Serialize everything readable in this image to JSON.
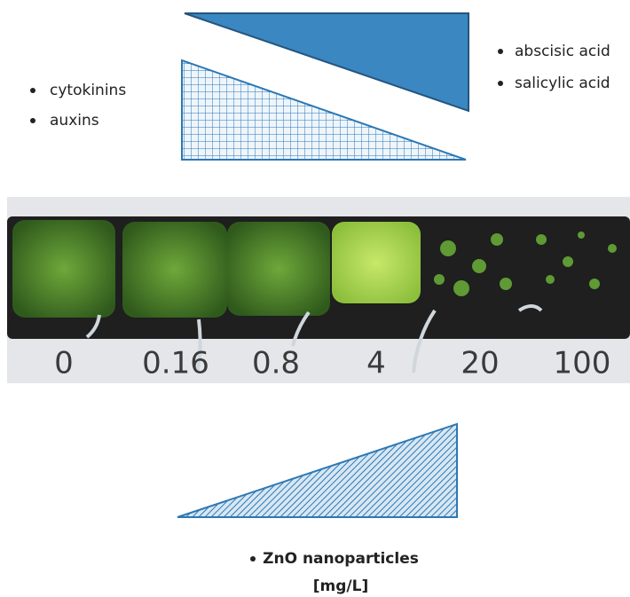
{
  "left_list": [
    "cytokinins",
    "auxins"
  ],
  "right_list": [
    "abscisic acid",
    "salicylic acid"
  ],
  "photo": {
    "concentrations": [
      "0",
      "0.16",
      "0.8",
      "4",
      "20",
      "100"
    ]
  },
  "footer": {
    "label": "ZnO nanoparticles",
    "unit": "[mg/L]"
  }
}
